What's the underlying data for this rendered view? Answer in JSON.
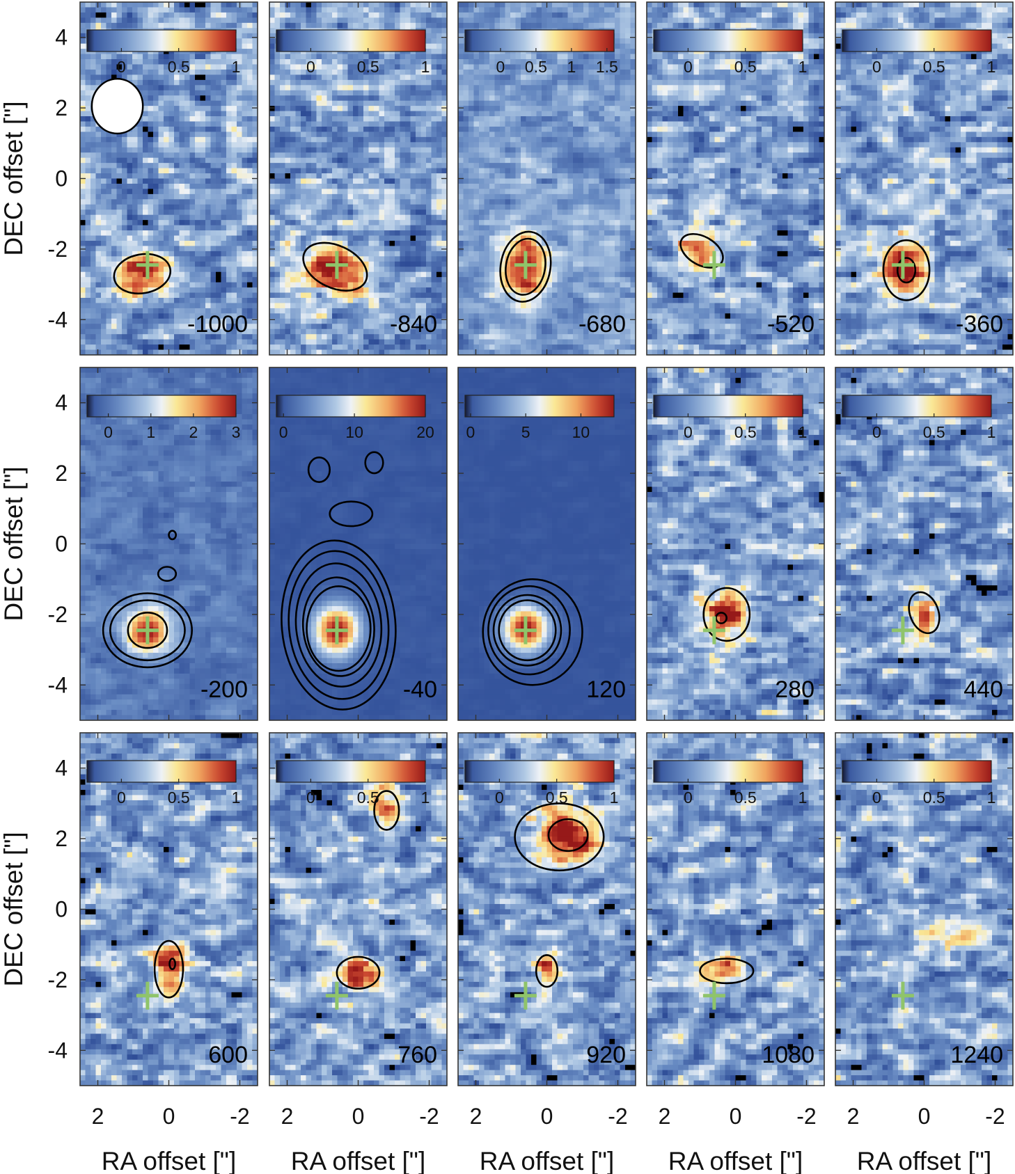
{
  "chart_data": {
    "type": "heatmap",
    "title": "",
    "xlabel": "RA offset [\"]",
    "ylabel": "DEC offset [\"]",
    "xlim": [
      2.5,
      -2.5
    ],
    "ylim": [
      -5,
      5
    ],
    "xticks": [
      2,
      0,
      -2
    ],
    "xtick_labels": [
      "2",
      "0",
      "-2"
    ],
    "yticks": [
      4,
      2,
      0,
      -2,
      -4
    ],
    "ytick_labels": [
      "4",
      "2",
      "0",
      "-2",
      "-4"
    ],
    "colormap": "blue-white-yellow-red",
    "cross_marker": {
      "ra": 0.6,
      "dec": -2.45,
      "color": "#8fc46a"
    },
    "beam": {
      "ra": 1.45,
      "dec": 2.05,
      "major": 1.25,
      "minor": 1.15
    },
    "panels": [
      {
        "velocity": "-1000",
        "cbar_range": [
          -0.3,
          1.0
        ],
        "cbar_ticks": [
          0,
          0.5,
          1
        ],
        "cbar_labels": [
          "0",
          "0.5",
          "1"
        ],
        "show_beam": true,
        "emission": [
          {
            "ra": 0.8,
            "dec": -2.75,
            "sra": 0.55,
            "sdec": 0.45,
            "amp": 1.0,
            "rot": 0
          }
        ],
        "contours": [
          {
            "ra": 0.75,
            "dec": -2.7,
            "rx": 0.8,
            "ry": 0.55,
            "rot": -10
          }
        ]
      },
      {
        "velocity": "-840",
        "cbar_range": [
          -0.3,
          1.0
        ],
        "cbar_ticks": [
          0,
          0.5,
          1
        ],
        "cbar_labels": [
          "0",
          "0.5",
          "1"
        ],
        "emission": [
          {
            "ra": 0.6,
            "dec": -2.6,
            "sra": 0.7,
            "sdec": 0.5,
            "amp": 0.9,
            "rot": 20
          }
        ],
        "contours": [
          {
            "ra": 0.65,
            "dec": -2.5,
            "rx": 0.95,
            "ry": 0.6,
            "rot": 25
          }
        ]
      },
      {
        "velocity": "-680",
        "cbar_range": [
          -0.5,
          1.6
        ],
        "cbar_ticks": [
          0,
          0.5,
          1,
          1.5
        ],
        "cbar_labels": [
          "0",
          "0.5",
          "1",
          "1.5"
        ],
        "emission": [
          {
            "ra": 0.6,
            "dec": -2.5,
            "sra": 0.5,
            "sdec": 0.7,
            "amp": 1.5,
            "rot": 0
          }
        ],
        "contours": [
          {
            "ra": 0.6,
            "dec": -2.5,
            "rx": 0.7,
            "ry": 1.0,
            "rot": 10
          },
          {
            "ra": 0.6,
            "dec": -2.5,
            "rx": 0.55,
            "ry": 0.8,
            "rot": 10
          }
        ]
      },
      {
        "velocity": "-520",
        "cbar_range": [
          -0.3,
          1.0
        ],
        "cbar_ticks": [
          0,
          0.5,
          1
        ],
        "cbar_labels": [
          "0",
          "0.5",
          "1"
        ],
        "emission": [
          {
            "ra": 0.95,
            "dec": -2.05,
            "sra": 0.45,
            "sdec": 0.35,
            "amp": 0.8,
            "rot": 30
          }
        ],
        "contours": [
          {
            "ra": 0.95,
            "dec": -2.05,
            "rx": 0.65,
            "ry": 0.4,
            "rot": 30
          }
        ]
      },
      {
        "velocity": "-360",
        "cbar_range": [
          -0.3,
          1.0
        ],
        "cbar_ticks": [
          0,
          0.5,
          1
        ],
        "cbar_labels": [
          "0",
          "0.5",
          "1"
        ],
        "emission": [
          {
            "ra": 0.5,
            "dec": -2.6,
            "sra": 0.5,
            "sdec": 0.6,
            "amp": 1.0,
            "rot": 0
          }
        ],
        "contours": [
          {
            "ra": 0.5,
            "dec": -2.6,
            "rx": 0.65,
            "ry": 0.85,
            "rot": 0
          },
          {
            "ra": 0.5,
            "dec": -2.6,
            "rx": 0.25,
            "ry": 0.35,
            "rot": 0
          }
        ]
      },
      {
        "velocity": "-200",
        "cbar_range": [
          -0.5,
          3.0
        ],
        "cbar_ticks": [
          0,
          1,
          2,
          3
        ],
        "cbar_labels": [
          "0",
          "1",
          "2",
          "3"
        ],
        "emission": [
          {
            "ra": 0.6,
            "dec": -2.45,
            "sra": 0.45,
            "sdec": 0.45,
            "amp": 3.0,
            "rot": 0
          }
        ],
        "contours": [
          {
            "ra": 0.6,
            "dec": -2.45,
            "rx": 1.25,
            "ry": 1.05,
            "rot": 0
          },
          {
            "ra": 0.6,
            "dec": -2.45,
            "rx": 1.05,
            "ry": 0.85,
            "rot": 0
          },
          {
            "ra": 0.6,
            "dec": -2.45,
            "rx": 0.55,
            "ry": 0.5,
            "rot": 0
          },
          {
            "ra": 0.05,
            "dec": -0.85,
            "rx": 0.25,
            "ry": 0.2,
            "rot": 0
          },
          {
            "ra": -0.1,
            "dec": 0.25,
            "rx": 0.1,
            "ry": 0.12,
            "rot": 0
          }
        ]
      },
      {
        "velocity": "-40",
        "cbar_range": [
          -1.0,
          20.0
        ],
        "cbar_ticks": [
          0,
          10,
          20
        ],
        "cbar_labels": [
          "0",
          "10",
          "20"
        ],
        "emission": [
          {
            "ra": 0.6,
            "dec": -2.45,
            "sra": 0.45,
            "sdec": 0.5,
            "amp": 20.0,
            "rot": 0
          }
        ],
        "contours": [
          {
            "ra": 0.55,
            "dec": -2.3,
            "rx": 1.6,
            "ry": 2.4,
            "rot": -5
          },
          {
            "ra": 0.55,
            "dec": -2.3,
            "rx": 1.4,
            "ry": 2.1,
            "rot": -5
          },
          {
            "ra": 0.55,
            "dec": -2.3,
            "rx": 1.2,
            "ry": 1.75,
            "rot": -5
          },
          {
            "ra": 0.55,
            "dec": -2.35,
            "rx": 1.0,
            "ry": 1.4,
            "rot": -5
          },
          {
            "ra": 0.55,
            "dec": -2.4,
            "rx": 0.9,
            "ry": 1.2,
            "rot": 0
          },
          {
            "ra": 0.2,
            "dec": 0.85,
            "rx": 0.6,
            "ry": 0.35,
            "rot": 0
          },
          {
            "ra": 1.1,
            "dec": 2.1,
            "rx": 0.3,
            "ry": 0.35,
            "rot": 0
          },
          {
            "ra": -0.45,
            "dec": 2.3,
            "rx": 0.25,
            "ry": 0.3,
            "rot": 0
          }
        ]
      },
      {
        "velocity": "120",
        "cbar_range": [
          -0.5,
          13.0
        ],
        "cbar_ticks": [
          0,
          5,
          10
        ],
        "cbar_labels": [
          "0",
          "5",
          "10"
        ],
        "emission": [
          {
            "ra": 0.6,
            "dec": -2.4,
            "sra": 0.45,
            "sdec": 0.45,
            "amp": 13.0,
            "rot": 0
          }
        ],
        "contours": [
          {
            "ra": 0.4,
            "dec": -2.5,
            "rx": 1.4,
            "ry": 1.5,
            "rot": 0
          },
          {
            "ra": 0.5,
            "dec": -2.45,
            "rx": 1.15,
            "ry": 1.25,
            "rot": 0
          },
          {
            "ra": 0.55,
            "dec": -2.45,
            "rx": 0.95,
            "ry": 1.0,
            "rot": 0
          },
          {
            "ra": 0.55,
            "dec": -2.45,
            "rx": 0.8,
            "ry": 0.85,
            "rot": 0
          }
        ]
      },
      {
        "velocity": "280",
        "cbar_range": [
          -0.3,
          1.0
        ],
        "cbar_ticks": [
          0,
          0.5,
          1
        ],
        "cbar_labels": [
          "0",
          "0.5",
          "1"
        ],
        "emission": [
          {
            "ra": 0.25,
            "dec": -2.0,
            "sra": 0.45,
            "sdec": 0.5,
            "amp": 1.0,
            "rot": 0
          }
        ],
        "contours": [
          {
            "ra": 0.25,
            "dec": -2.0,
            "rx": 0.65,
            "ry": 0.75,
            "rot": 0
          },
          {
            "ra": 0.4,
            "dec": -2.1,
            "rx": 0.15,
            "ry": 0.15,
            "rot": 0
          }
        ]
      },
      {
        "velocity": "440",
        "cbar_range": [
          -0.3,
          1.0
        ],
        "cbar_ticks": [
          0,
          0.5,
          1
        ],
        "cbar_labels": [
          "0",
          "0.5",
          "1"
        ],
        "emission": [
          {
            "ra": 0.0,
            "dec": -2.0,
            "sra": 0.3,
            "sdec": 0.45,
            "amp": 0.9,
            "rot": 0
          }
        ],
        "contours": [
          {
            "ra": 0.0,
            "dec": -1.95,
            "rx": 0.4,
            "ry": 0.6,
            "rot": -20
          }
        ]
      },
      {
        "velocity": "600",
        "cbar_range": [
          -0.3,
          1.0
        ],
        "cbar_ticks": [
          0,
          0.5,
          1
        ],
        "cbar_labels": [
          "0",
          "0.5",
          "1"
        ],
        "emission": [
          {
            "ra": 0.0,
            "dec": -1.6,
            "sra": 0.3,
            "sdec": 0.55,
            "amp": 1.0,
            "rot": 0
          }
        ],
        "contours": [
          {
            "ra": 0.0,
            "dec": -1.7,
            "rx": 0.4,
            "ry": 0.8,
            "rot": 0
          },
          {
            "ra": -0.1,
            "dec": -1.55,
            "rx": 0.08,
            "ry": 0.15,
            "rot": 0
          }
        ]
      },
      {
        "velocity": "760",
        "cbar_range": [
          -0.3,
          1.0
        ],
        "cbar_ticks": [
          0,
          0.5,
          1
        ],
        "cbar_labels": [
          "0",
          "0.5",
          "1"
        ],
        "emission": [
          {
            "ra": 0.0,
            "dec": -1.85,
            "sra": 0.45,
            "sdec": 0.35,
            "amp": 0.8,
            "rot": 0
          },
          {
            "ra": -0.8,
            "dec": 2.8,
            "sra": 0.3,
            "sdec": 0.45,
            "amp": 0.7,
            "rot": 0
          }
        ],
        "contours": [
          {
            "ra": 0.0,
            "dec": -1.8,
            "rx": 0.6,
            "ry": 0.45,
            "rot": 0
          },
          {
            "ra": -0.8,
            "dec": 2.8,
            "rx": 0.35,
            "ry": 0.55,
            "rot": 0
          }
        ]
      },
      {
        "velocity": "920",
        "cbar_range": [
          -0.3,
          1.0
        ],
        "cbar_ticks": [
          0,
          0.5,
          1
        ],
        "cbar_labels": [
          "0",
          "0.5",
          "1"
        ],
        "emission": [
          {
            "ra": -0.55,
            "dec": 2.1,
            "sra": 0.65,
            "sdec": 0.55,
            "amp": 1.0,
            "rot": 0
          },
          {
            "ra": 0.0,
            "dec": -1.75,
            "sra": 0.25,
            "sdec": 0.35,
            "amp": 0.75,
            "rot": 0
          }
        ],
        "contours": [
          {
            "ra": -0.35,
            "dec": 2.05,
            "rx": 1.25,
            "ry": 0.95,
            "rot": 0
          },
          {
            "ra": -0.6,
            "dec": 2.1,
            "rx": 0.55,
            "ry": 0.45,
            "rot": 0
          },
          {
            "ra": 0.0,
            "dec": -1.75,
            "rx": 0.3,
            "ry": 0.45,
            "rot": 0
          }
        ]
      },
      {
        "velocity": "1080",
        "cbar_range": [
          -0.3,
          1.0
        ],
        "cbar_ticks": [
          0,
          0.5,
          1
        ],
        "cbar_labels": [
          "0",
          "0.5",
          "1"
        ],
        "emission": [
          {
            "ra": 0.35,
            "dec": -1.75,
            "sra": 0.5,
            "sdec": 0.3,
            "amp": 0.85,
            "rot": 0
          }
        ],
        "contours": [
          {
            "ra": 0.25,
            "dec": -1.75,
            "rx": 0.75,
            "ry": 0.35,
            "rot": 0
          }
        ]
      },
      {
        "velocity": "1240",
        "cbar_range": [
          -0.3,
          1.0
        ],
        "cbar_ticks": [
          0,
          0.5,
          1
        ],
        "cbar_labels": [
          "0",
          "0.5",
          "1"
        ],
        "emission": [
          {
            "ra": -0.7,
            "dec": -0.75,
            "sra": 0.6,
            "sdec": 0.35,
            "amp": 0.55,
            "rot": 0
          }
        ],
        "contours": []
      }
    ]
  }
}
